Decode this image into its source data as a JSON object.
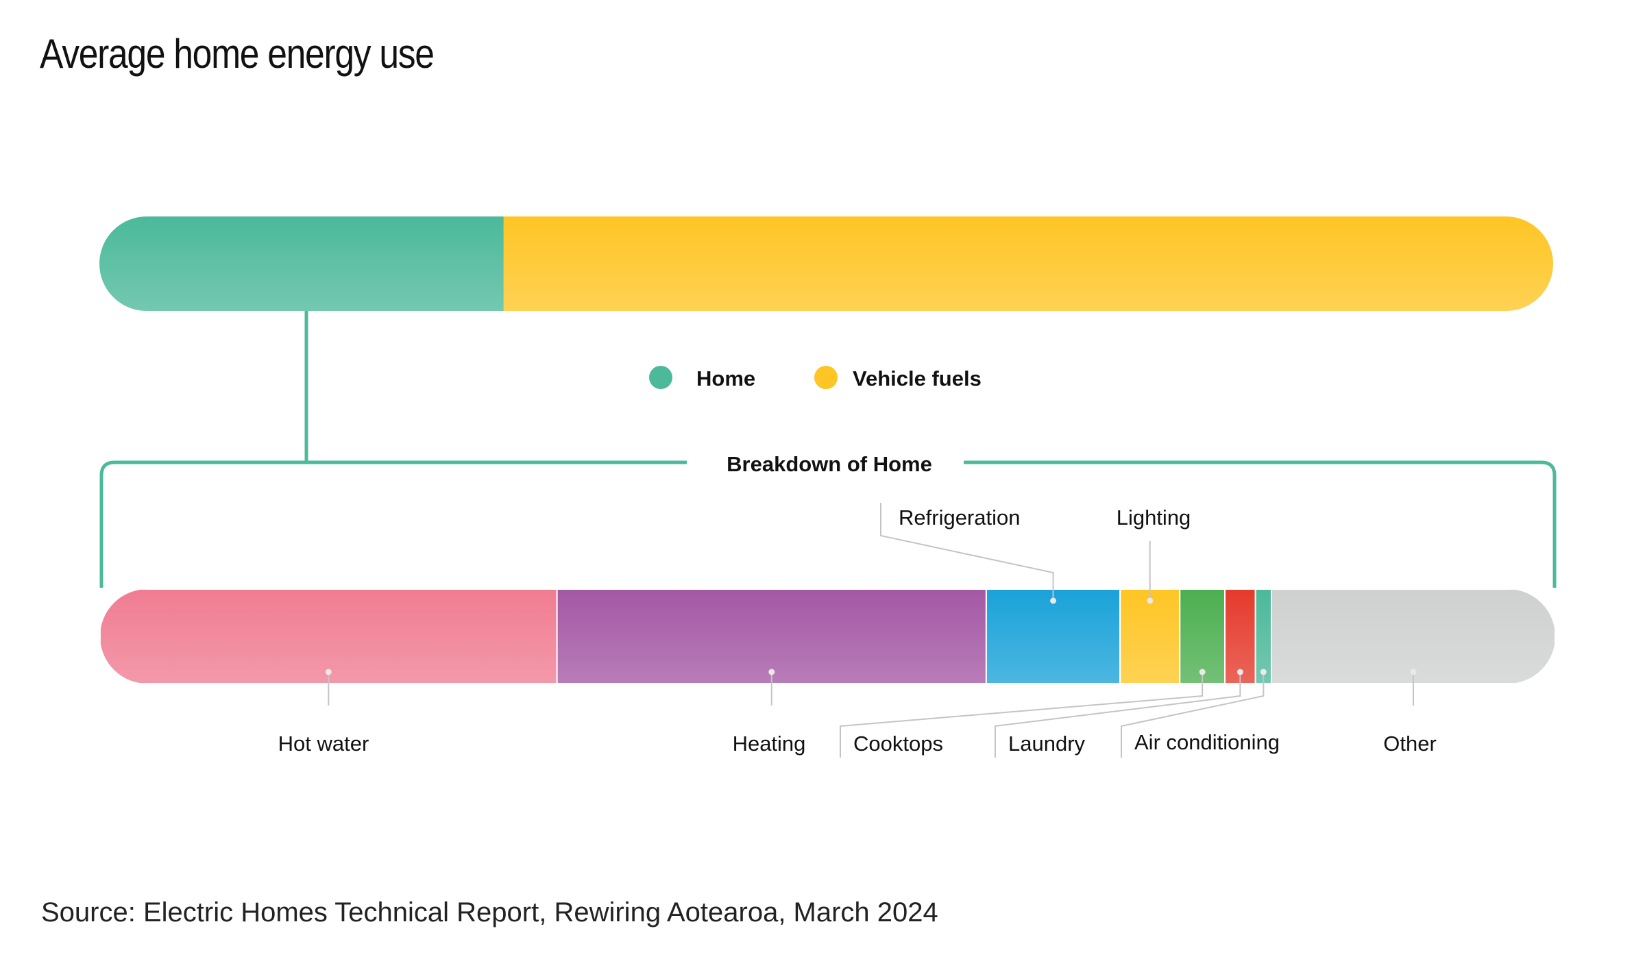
{
  "chart_data": [
    {
      "type": "bar",
      "orientation": "horizontal-stacked",
      "title": "Average home energy use",
      "categories": [
        "Home",
        "Vehicle fuels"
      ],
      "values": [
        27.8,
        72.2
      ],
      "unit": "percent",
      "colors": [
        "#4cb99a",
        "#fec524"
      ],
      "legend": {
        "position": "below",
        "entries": [
          "Home",
          "Vehicle fuels"
        ]
      }
    },
    {
      "type": "bar",
      "orientation": "horizontal-stacked",
      "title": "Breakdown of Home",
      "categories": [
        "Hot water",
        "Heating",
        "Refrigeration",
        "Lighting",
        "Cooktops",
        "Laundry",
        "Air conditioning",
        "Other"
      ],
      "values": [
        31.4,
        29.5,
        9.2,
        4.1,
        3.1,
        2.1,
        1.1,
        19.5
      ],
      "unit": "percent",
      "colors": [
        "#f07c92",
        "#a458a4",
        "#1aa2d9",
        "#fec524",
        "#4caf50",
        "#e53a2c",
        "#4cb99a",
        "#cfd1d0"
      ]
    }
  ],
  "source": "Source: Electric Homes Technical Report, Rewiring Aotearoa, March 2024"
}
